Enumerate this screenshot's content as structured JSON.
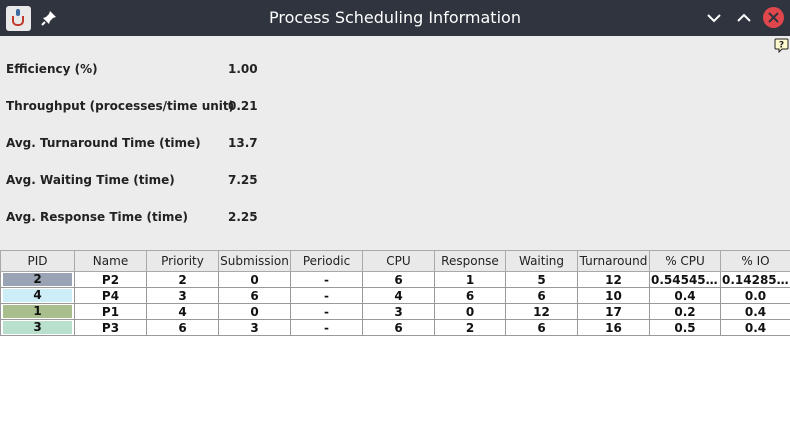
{
  "window": {
    "title": "Process Scheduling Information"
  },
  "icons": {
    "app": "java-cup-icon",
    "pin": "pin-icon",
    "minimize": "chevron-down-icon",
    "maximize": "chevron-up-icon",
    "close": "close-icon",
    "help": "help-bubble-icon"
  },
  "stats": [
    {
      "label": "Efficiency (%)",
      "value": "1.00"
    },
    {
      "label": "Throughput (processes/time unit)",
      "value": "0.21"
    },
    {
      "label": "Avg. Turnaround Time (time)",
      "value": "13.75"
    },
    {
      "label": "Avg. Waiting Time (time)",
      "value": "7.25"
    },
    {
      "label": "Avg. Response Time (time)",
      "value": "2.25"
    }
  ],
  "table": {
    "columns": [
      "PID",
      "Name",
      "Priority",
      "Submission",
      "Periodic",
      "CPU",
      "Response",
      "Waiting",
      "Turnaround",
      "% CPU",
      "% IO"
    ],
    "rows": [
      {
        "color": "#9aa3b3",
        "cells": [
          "2",
          "P2",
          "2",
          "0",
          "-",
          "6",
          "1",
          "5",
          "12",
          "0.5454545...",
          "0.1428571..."
        ]
      },
      {
        "color": "#cdeef6",
        "cells": [
          "4",
          "P4",
          "3",
          "6",
          "-",
          "4",
          "6",
          "6",
          "10",
          "0.4",
          "0.0"
        ]
      },
      {
        "color": "#a8be8c",
        "cells": [
          "1",
          "P1",
          "4",
          "0",
          "-",
          "3",
          "0",
          "12",
          "17",
          "0.2",
          "0.4"
        ]
      },
      {
        "color": "#b9e0cc",
        "cells": [
          "3",
          "P3",
          "6",
          "3",
          "-",
          "6",
          "2",
          "6",
          "16",
          "0.5",
          "0.4"
        ]
      }
    ]
  },
  "colors": {
    "titlebar": "#2f343f",
    "close_button": "#e0474c",
    "window_bg": "#ececec",
    "table_bg": "#ffffff"
  }
}
